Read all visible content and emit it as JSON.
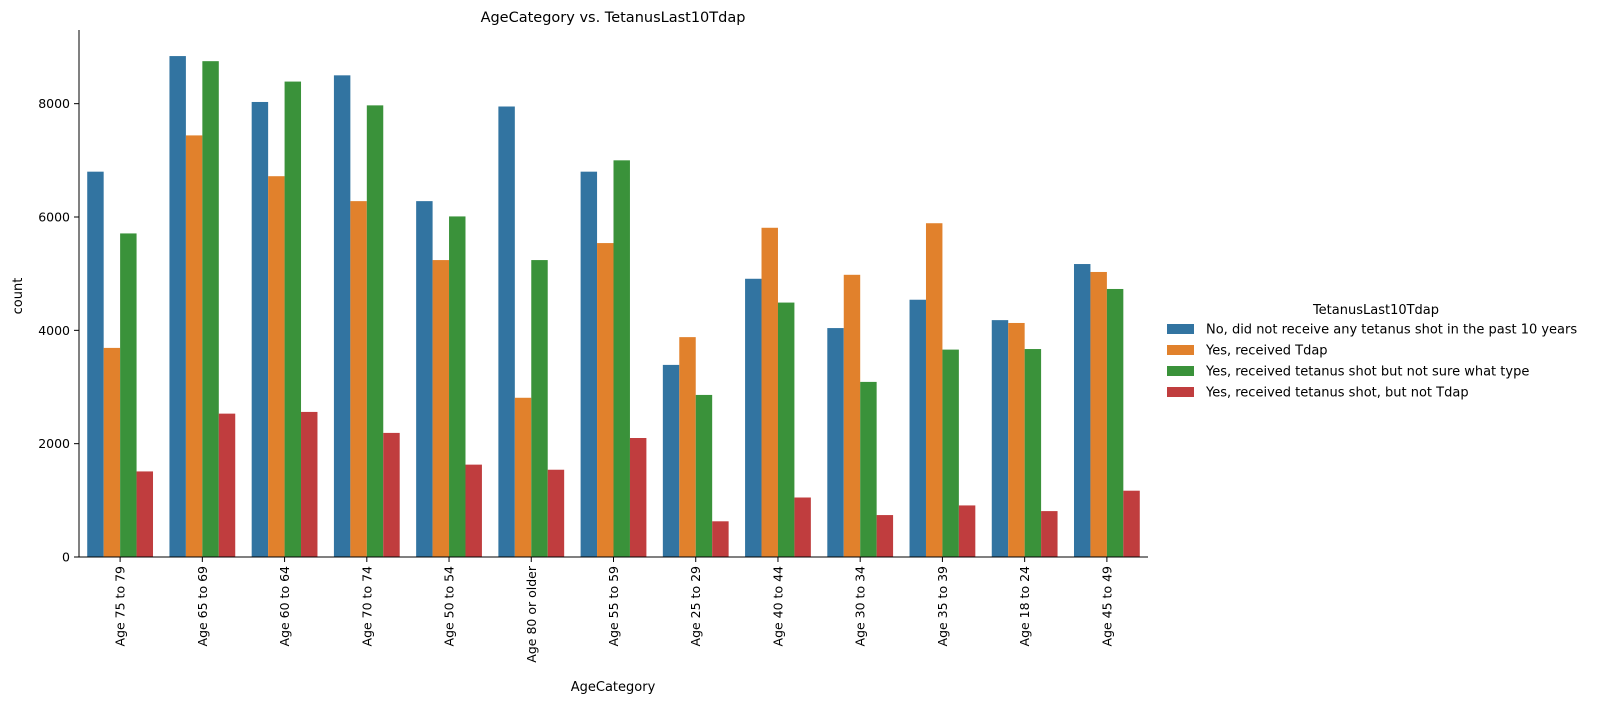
{
  "chart_data": {
    "type": "bar",
    "title": "AgeCategory vs. TetanusLast10Tdap",
    "xlabel": "AgeCategory",
    "ylabel": "count",
    "ylim": [
      0,
      9300
    ],
    "yticks": [
      0,
      2000,
      4000,
      6000,
      8000
    ],
    "grid": false,
    "legend": {
      "title": "TetanusLast10Tdap",
      "placement": "right"
    },
    "categories": [
      "Age 75 to 79",
      "Age 65 to 69",
      "Age 60 to 64",
      "Age 70 to 74",
      "Age 50 to 54",
      "Age 80 or older",
      "Age 55 to 59",
      "Age 25 to 29",
      "Age 40 to 44",
      "Age 30 to 34",
      "Age 35 to 39",
      "Age 18 to 24",
      "Age 45 to 49"
    ],
    "series": [
      {
        "name": "No, did not receive any tetanus shot in the past 10 years",
        "color": "#3274a1",
        "values": [
          6800,
          8840,
          8030,
          8500,
          6280,
          7950,
          6800,
          3390,
          4910,
          4040,
          4540,
          4180,
          5170
        ]
      },
      {
        "name": "Yes, received Tdap",
        "color": "#e1812c",
        "values": [
          3690,
          7440,
          6720,
          6280,
          5240,
          2810,
          5540,
          3880,
          5810,
          4980,
          5890,
          4130,
          5030
        ]
      },
      {
        "name": "Yes, received tetanus shot but not sure what type",
        "color": "#3a923a",
        "values": [
          5710,
          8750,
          8390,
          7970,
          6010,
          5240,
          7000,
          2860,
          4490,
          3090,
          3660,
          3670,
          4730
        ]
      },
      {
        "name": "Yes, received tetanus shot, but not Tdap",
        "color": "#c03d3e",
        "values": [
          1510,
          2530,
          2560,
          2190,
          1630,
          1540,
          2100,
          630,
          1050,
          740,
          910,
          810,
          1170
        ]
      }
    ]
  }
}
